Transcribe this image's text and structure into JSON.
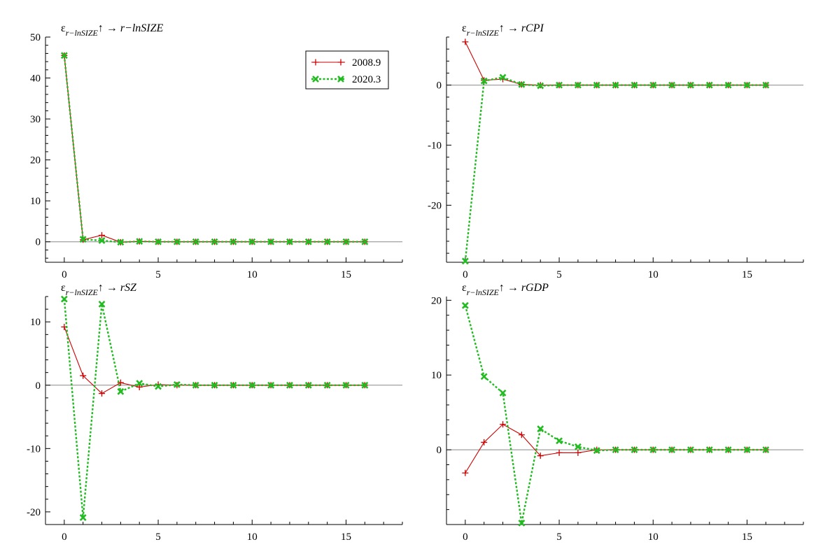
{
  "figure": {
    "legend": [
      {
        "label": "2008.9",
        "color": "#cc0000",
        "marker": "plus",
        "style": "solid"
      },
      {
        "label": "2020.3",
        "color": "#22bb22",
        "marker": "cross",
        "style": "dotted"
      }
    ]
  },
  "chart_data": [
    {
      "type": "line",
      "title": {
        "eps": "ε",
        "sub": "r−lnSIZE",
        "arrow": "↑ → ",
        "target": "r−lnSIZE"
      },
      "x": [
        0,
        1,
        2,
        3,
        4,
        5,
        6,
        7,
        8,
        9,
        10,
        11,
        12,
        13,
        14,
        15,
        16
      ],
      "xlim": [
        -1,
        18
      ],
      "xticks": [
        0,
        5,
        10,
        15
      ],
      "ylim": [
        -5,
        50
      ],
      "yticks": [
        0,
        10,
        20,
        30,
        40,
        50
      ],
      "zero_line": true,
      "legend_placement": "top-right",
      "series": [
        {
          "name": "2008.9",
          "values": [
            45.5,
            0.5,
            1.6,
            -0.1,
            0.1,
            0,
            0,
            0,
            0,
            0,
            0,
            0,
            0,
            0,
            0,
            0,
            0
          ]
        },
        {
          "name": "2020.3",
          "values": [
            45.5,
            0.6,
            0.3,
            -0.1,
            0.1,
            0,
            0,
            0,
            0,
            0,
            0,
            0,
            0,
            0,
            0,
            0,
            0
          ]
        }
      ]
    },
    {
      "type": "line",
      "title": {
        "eps": "ε",
        "sub": "r−lnSIZE",
        "arrow": "↑ → ",
        "target": "rCPI"
      },
      "x": [
        0,
        1,
        2,
        3,
        4,
        5,
        6,
        7,
        8,
        9,
        10,
        11,
        12,
        13,
        14,
        15,
        16
      ],
      "xlim": [
        -1,
        18
      ],
      "xticks": [
        0,
        5,
        10,
        15
      ],
      "ylim": [
        -29.5,
        8
      ],
      "yticks": [
        0,
        -10,
        -20
      ],
      "zero_line": true,
      "series": [
        {
          "name": "2008.9",
          "values": [
            7.2,
            0.8,
            1.0,
            0.1,
            0,
            0,
            0,
            0,
            0,
            0,
            0,
            0,
            0,
            0,
            0,
            0,
            0
          ]
        },
        {
          "name": "2020.3",
          "values": [
            -29.3,
            0.7,
            1.3,
            0.1,
            -0.1,
            0,
            0,
            0,
            0,
            0,
            0,
            0,
            0,
            0,
            0,
            0,
            0
          ]
        }
      ]
    },
    {
      "type": "line",
      "title": {
        "eps": "ε",
        "sub": "r−lnSIZE",
        "arrow": "↑ → ",
        "target": "rSZ"
      },
      "x": [
        0,
        1,
        2,
        3,
        4,
        5,
        6,
        7,
        8,
        9,
        10,
        11,
        12,
        13,
        14,
        15,
        16
      ],
      "xlim": [
        -1,
        18
      ],
      "xticks": [
        0,
        5,
        10,
        15
      ],
      "ylim": [
        -22,
        14
      ],
      "yticks": [
        10,
        0,
        -10,
        -20
      ],
      "zero_line": true,
      "series": [
        {
          "name": "2008.9",
          "values": [
            9.2,
            1.5,
            -1.3,
            0.4,
            -0.3,
            0.1,
            0,
            0,
            0,
            0,
            0,
            0,
            0,
            0,
            0,
            0,
            0
          ]
        },
        {
          "name": "2020.3",
          "values": [
            13.6,
            -20.9,
            12.8,
            -1.0,
            0.3,
            -0.2,
            0.1,
            0,
            0,
            0,
            0,
            0,
            0,
            0,
            0,
            0,
            0
          ]
        }
      ]
    },
    {
      "type": "line",
      "title": {
        "eps": "ε",
        "sub": "r−lnSIZE",
        "arrow": "↑ → ",
        "target": "rGDP"
      },
      "x": [
        0,
        1,
        2,
        3,
        4,
        5,
        6,
        7,
        8,
        9,
        10,
        11,
        12,
        13,
        14,
        15,
        16
      ],
      "xlim": [
        -1,
        18
      ],
      "xticks": [
        0,
        5,
        10,
        15
      ],
      "ylim": [
        -10,
        20.5
      ],
      "yticks": [
        20,
        10,
        0
      ],
      "zero_line": true,
      "series": [
        {
          "name": "2008.9",
          "values": [
            -3.1,
            1.0,
            3.4,
            2.0,
            -0.8,
            -0.4,
            -0.4,
            0,
            0,
            0,
            0,
            0,
            0,
            0,
            0,
            0,
            0
          ]
        },
        {
          "name": "2020.3",
          "values": [
            19.3,
            9.8,
            7.6,
            -9.8,
            2.8,
            1.2,
            0.4,
            -0.1,
            0,
            0,
            0,
            0,
            0,
            0,
            0,
            0,
            0
          ]
        }
      ]
    }
  ]
}
